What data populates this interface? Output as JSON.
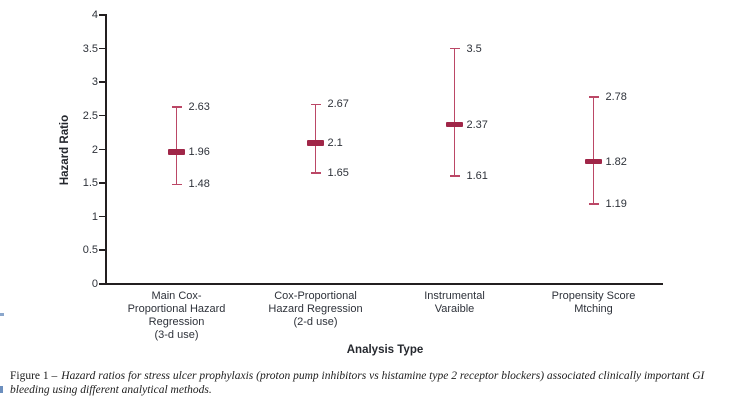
{
  "caption": {
    "prefix": "Figure 1 –",
    "text": "Hazard ratios for stress ulcer prophylaxis (proton pump inhibitors vs histamine type 2 receptor blockers) associated clinically important GI bleeding using different analytical methods."
  },
  "chart_data": {
    "type": "errorbar",
    "title": "",
    "xlabel": "Analysis Type",
    "ylabel": "Hazard Ratio",
    "ylim": [
      0,
      4
    ],
    "yticks": [
      4,
      3.5,
      3,
      2.5,
      2,
      1.5,
      1,
      0.5,
      0
    ],
    "ytick_labels": [
      "4",
      "3.5",
      "3",
      "2.5",
      "2",
      "1.5",
      "1",
      "0.5",
      "0"
    ],
    "grid": false,
    "legend": "none",
    "categories": [
      "Main Cox-Proportional Hazard Regression (3-d use)",
      "Cox-Proportional Hazard Regression (2-d use)",
      "Instrumental Varaible",
      "Propensity Score Mtching"
    ],
    "category_lines": [
      [
        "Main Cox-",
        "Proportional Hazard",
        "Regression",
        "(3-d use)"
      ],
      [
        "Cox-Proportional",
        "Hazard Regression",
        "(2-d use)"
      ],
      [
        "Instrumental",
        "Varaible"
      ],
      [
        "Propensity Score",
        "Mtching"
      ]
    ],
    "points": [
      {
        "category": "Main Cox-Proportional Hazard Regression (3-d use)",
        "estimate": 1.96,
        "upper": 2.63,
        "lower": 1.48,
        "estimate_label": "1.96",
        "upper_label": "2.63",
        "lower_label": "1.48"
      },
      {
        "category": "Cox-Proportional Hazard Regression (2-d use)",
        "estimate": 2.1,
        "upper": 2.67,
        "lower": 1.65,
        "estimate_label": "2.1",
        "upper_label": "2.67",
        "lower_label": "1.65"
      },
      {
        "category": "Instrumental Varaible",
        "estimate": 2.37,
        "upper": 3.5,
        "lower": 1.61,
        "estimate_label": "2.37",
        "upper_label": "3.5",
        "lower_label": "1.61"
      },
      {
        "category": "Propensity Score Mtching",
        "estimate": 1.82,
        "upper": 2.78,
        "lower": 1.19,
        "estimate_label": "1.82",
        "upper_label": "2.78",
        "lower_label": "1.19"
      }
    ],
    "colors": {
      "errorbar": "#bb4766",
      "marker": "#a02648",
      "axis": "#231f20",
      "text": "#2e323a"
    }
  }
}
